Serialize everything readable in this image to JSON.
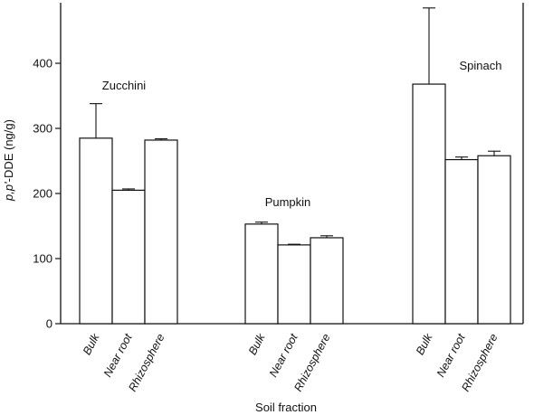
{
  "chart_data": {
    "type": "bar",
    "title": "",
    "xlabel": "Soil fraction",
    "ylabel": "p,p'-DDE (ng/g)",
    "ylim": [
      0,
      500
    ],
    "yticks": [
      0,
      100,
      200,
      300,
      400
    ],
    "grid": false,
    "error_bars": true,
    "groups": [
      {
        "name": "Zucchini",
        "categories": [
          "Bulk",
          "Near root",
          "Rhizosphere"
        ],
        "values": [
          285,
          205,
          282
        ],
        "errors": [
          53,
          2,
          2
        ]
      },
      {
        "name": "Pumpkin",
        "categories": [
          "Bulk",
          "Near root",
          "Rhizosphere"
        ],
        "values": [
          153,
          121,
          132
        ],
        "errors": [
          3,
          1,
          3
        ]
      },
      {
        "name": "Spinach",
        "categories": [
          "Bulk",
          "Near root",
          "Rhizosphere"
        ],
        "values": [
          368,
          252,
          258
        ],
        "errors": [
          117,
          4,
          7
        ]
      }
    ]
  }
}
